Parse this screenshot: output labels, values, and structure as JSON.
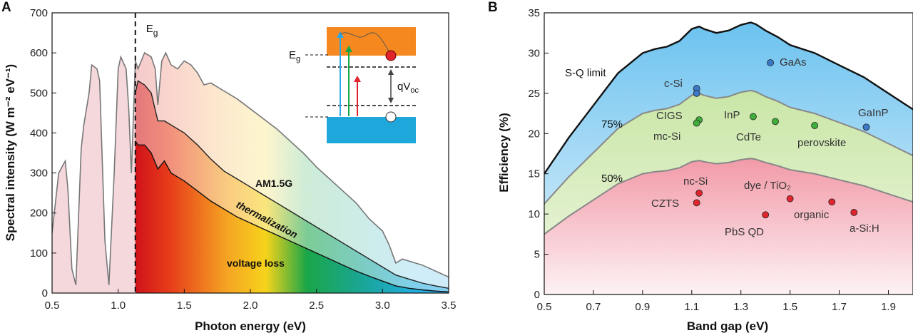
{
  "chart_data": [
    {
      "panel": "A",
      "type": "area",
      "xlabel": "Photon energy (eV)",
      "ylabel": "Spectral intensity (W m⁻² eV⁻¹)",
      "xlim": [
        0.5,
        3.5
      ],
      "ylim": [
        0,
        700
      ],
      "xticks": [
        "0.5",
        "1.0",
        "1.5",
        "2.0",
        "2.5",
        "3.0",
        "3.5"
      ],
      "yticks": [
        "0",
        "100",
        "200",
        "300",
        "400",
        "500",
        "600",
        "700"
      ],
      "bandgap_eV": 1.13,
      "bandgap_label": "E",
      "bandgap_sub": "g",
      "series": [
        {
          "name": "AM1.5G",
          "x": [
            0.5,
            0.55,
            0.6,
            0.62,
            0.65,
            0.68,
            0.72,
            0.74,
            0.78,
            0.8,
            0.84,
            0.86,
            0.9,
            0.93,
            0.97,
            1.0,
            1.02,
            1.06,
            1.08,
            1.1,
            1.13,
            1.15,
            1.2,
            1.25,
            1.28,
            1.3,
            1.33,
            1.36,
            1.4,
            1.45,
            1.5,
            1.55,
            1.6,
            1.65,
            1.7,
            1.8,
            1.9,
            2.0,
            2.1,
            2.2,
            2.3,
            2.4,
            2.5,
            2.6,
            2.7,
            2.8,
            2.9,
            3.0,
            3.05,
            3.1,
            3.15,
            3.2,
            3.3,
            3.4,
            3.5
          ],
          "y": [
            150,
            300,
            330,
            260,
            60,
            20,
            360,
            420,
            500,
            570,
            560,
            530,
            130,
            20,
            300,
            560,
            590,
            560,
            460,
            300,
            580,
            560,
            600,
            590,
            560,
            470,
            580,
            600,
            570,
            560,
            580,
            570,
            550,
            520,
            525,
            505,
            485,
            460,
            435,
            410,
            380,
            350,
            315,
            285,
            255,
            225,
            185,
            155,
            120,
            75,
            85,
            80,
            70,
            55,
            40
          ]
        },
        {
          "name": "thermalization",
          "x": [
            1.13,
            1.15,
            1.2,
            1.25,
            1.3,
            1.35,
            1.4,
            1.5,
            1.6,
            1.7,
            1.8,
            1.9,
            2.0,
            2.1,
            2.2,
            2.3,
            2.4,
            2.5,
            2.6,
            2.7,
            2.8,
            2.9,
            3.0,
            3.1,
            3.2,
            3.3,
            3.4,
            3.5
          ],
          "y": [
            500,
            530,
            520,
            500,
            430,
            430,
            420,
            400,
            370,
            335,
            305,
            285,
            265,
            245,
            225,
            205,
            185,
            165,
            145,
            125,
            105,
            85,
            65,
            45,
            35,
            25,
            18,
            12
          ]
        },
        {
          "name": "voltage loss",
          "x": [
            1.13,
            1.15,
            1.2,
            1.25,
            1.3,
            1.35,
            1.4,
            1.5,
            1.6,
            1.7,
            1.8,
            1.9,
            2.0,
            2.1,
            2.2,
            2.3,
            2.4,
            2.5,
            2.6,
            2.7,
            2.8,
            2.9,
            3.0,
            3.1,
            3.2,
            3.3,
            3.4,
            3.5
          ],
          "y": [
            380,
            370,
            370,
            350,
            310,
            330,
            300,
            280,
            255,
            230,
            210,
            190,
            175,
            160,
            145,
            130,
            115,
            100,
            85,
            70,
            55,
            42,
            30,
            18,
            12,
            8,
            5,
            3
          ]
        }
      ],
      "annotations": [
        "AM1.5G",
        "thermalization",
        "voltage loss"
      ],
      "inset": {
        "eg_label": "E",
        "eg_sub": "g",
        "qv_label": "qV",
        "qv_sub": "oc"
      }
    },
    {
      "panel": "B",
      "type": "scatter",
      "xlabel": "Band gap (eV)",
      "ylabel": "Efficiency (%)",
      "xlim": [
        0.5,
        2.0
      ],
      "ylim": [
        0,
        35
      ],
      "xticks": [
        "0.5",
        "0.7",
        "0.9",
        "1.1",
        "1.3",
        "1.5",
        "1.7",
        "1.9"
      ],
      "yticks": [
        "0",
        "5",
        "10",
        "15",
        "20",
        "25",
        "30",
        "35"
      ],
      "limit_curve": {
        "name": "S-Q limit",
        "x": [
          0.5,
          0.6,
          0.7,
          0.8,
          0.9,
          0.95,
          1.0,
          1.05,
          1.1,
          1.13,
          1.15,
          1.2,
          1.25,
          1.3,
          1.34,
          1.36,
          1.4,
          1.45,
          1.5,
          1.6,
          1.7,
          1.8,
          1.9,
          2.0
        ],
        "y": [
          15.0,
          19.5,
          23.5,
          27.5,
          30.0,
          30.5,
          30.8,
          31.5,
          33.0,
          33.3,
          33.0,
          32.5,
          32.8,
          33.5,
          33.8,
          33.6,
          32.8,
          32.0,
          31.0,
          30.0,
          28.5,
          27.0,
          25.0,
          23.0
        ]
      },
      "fraction_labels": [
        "75%",
        "50%"
      ],
      "fractions": [
        0.75,
        0.5
      ],
      "points": [
        {
          "name": "GaAs",
          "x": 1.42,
          "y": 28.8,
          "group": "high"
        },
        {
          "name": "c-Si",
          "x": 1.12,
          "y": 25.6,
          "group": "high"
        },
        {
          "name": "c-Si",
          "x": 1.12,
          "y": 25.0,
          "group": "high"
        },
        {
          "name": "GaInP",
          "x": 1.81,
          "y": 20.8,
          "group": "high"
        },
        {
          "name": "CIGS",
          "x": 1.13,
          "y": 21.7,
          "group": "mid"
        },
        {
          "name": "mc-Si",
          "x": 1.12,
          "y": 21.3,
          "group": "mid"
        },
        {
          "name": "InP",
          "x": 1.35,
          "y": 22.1,
          "group": "mid"
        },
        {
          "name": "CdTe",
          "x": 1.44,
          "y": 21.5,
          "group": "mid"
        },
        {
          "name": "perovskite",
          "x": 1.6,
          "y": 21.0,
          "group": "mid"
        },
        {
          "name": "nc-Si",
          "x": 1.13,
          "y": 12.6,
          "group": "low"
        },
        {
          "name": "CZTS",
          "x": 1.12,
          "y": 11.4,
          "group": "low"
        },
        {
          "name": "dye / TiO₂",
          "x": 1.5,
          "y": 11.9,
          "group": "low"
        },
        {
          "name": "PbS QD",
          "x": 1.4,
          "y": 9.9,
          "group": "low"
        },
        {
          "name": "organic",
          "x": 1.67,
          "y": 11.5,
          "group": "low"
        },
        {
          "name": "a-Si:H",
          "x": 1.76,
          "y": 10.2,
          "group": "low"
        }
      ],
      "point_labels": [
        "GaAs",
        "c-Si",
        "GaInP",
        "CIGS",
        "mc-Si",
        "InP",
        "CdTe",
        "perovskite",
        "nc-Si",
        "CZTS",
        "dye / TiO₂",
        "PbS QD",
        "organic",
        "a-Si:H"
      ],
      "colors": {
        "high": "#3a78c8",
        "mid": "#3fae3a",
        "low": "#e0252d"
      }
    }
  ]
}
